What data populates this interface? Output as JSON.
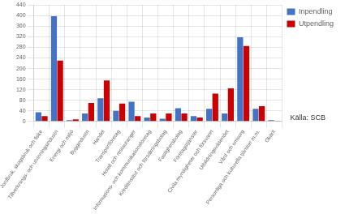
{
  "chart_data": {
    "type": "bar",
    "categories": [
      "Jordbruk, skogsbruk och fiske",
      "Tillverknings- och utvinningsindustri",
      "Energi och miljö",
      "Byggindustri",
      "Handel",
      "Transportföretag",
      "Hotell och restauranger",
      "Informations- och kommunikationsföretag",
      "Kreditinstitut och försäkringsbolag",
      "Fastighetsbolag",
      "Företagstjänster",
      "Civila myndigheter och försvaret",
      "Utbildningsväsendet",
      "Vård och omsorg",
      "Personliga och kulturella tjänster m.m.",
      "Okänt"
    ],
    "series": [
      {
        "name": "Inpendling",
        "color": "#4472C4",
        "values": [
          35,
          398,
          5,
          30,
          88,
          40,
          75,
          15,
          10,
          50,
          20,
          48,
          30,
          318,
          48,
          5
        ]
      },
      {
        "name": "Utpendling",
        "color": "#CC0000",
        "values": [
          20,
          230,
          8,
          70,
          155,
          68,
          20,
          30,
          30,
          30,
          15,
          105,
          125,
          285,
          58,
          3
        ]
      }
    ],
    "ylim": [
      0,
      440
    ],
    "yticks": [
      0,
      40,
      80,
      120,
      160,
      200,
      240,
      280,
      320,
      360,
      400,
      440
    ],
    "grid": true,
    "legend": "upper right",
    "annotations": [
      "Källa: SCB"
    ]
  }
}
